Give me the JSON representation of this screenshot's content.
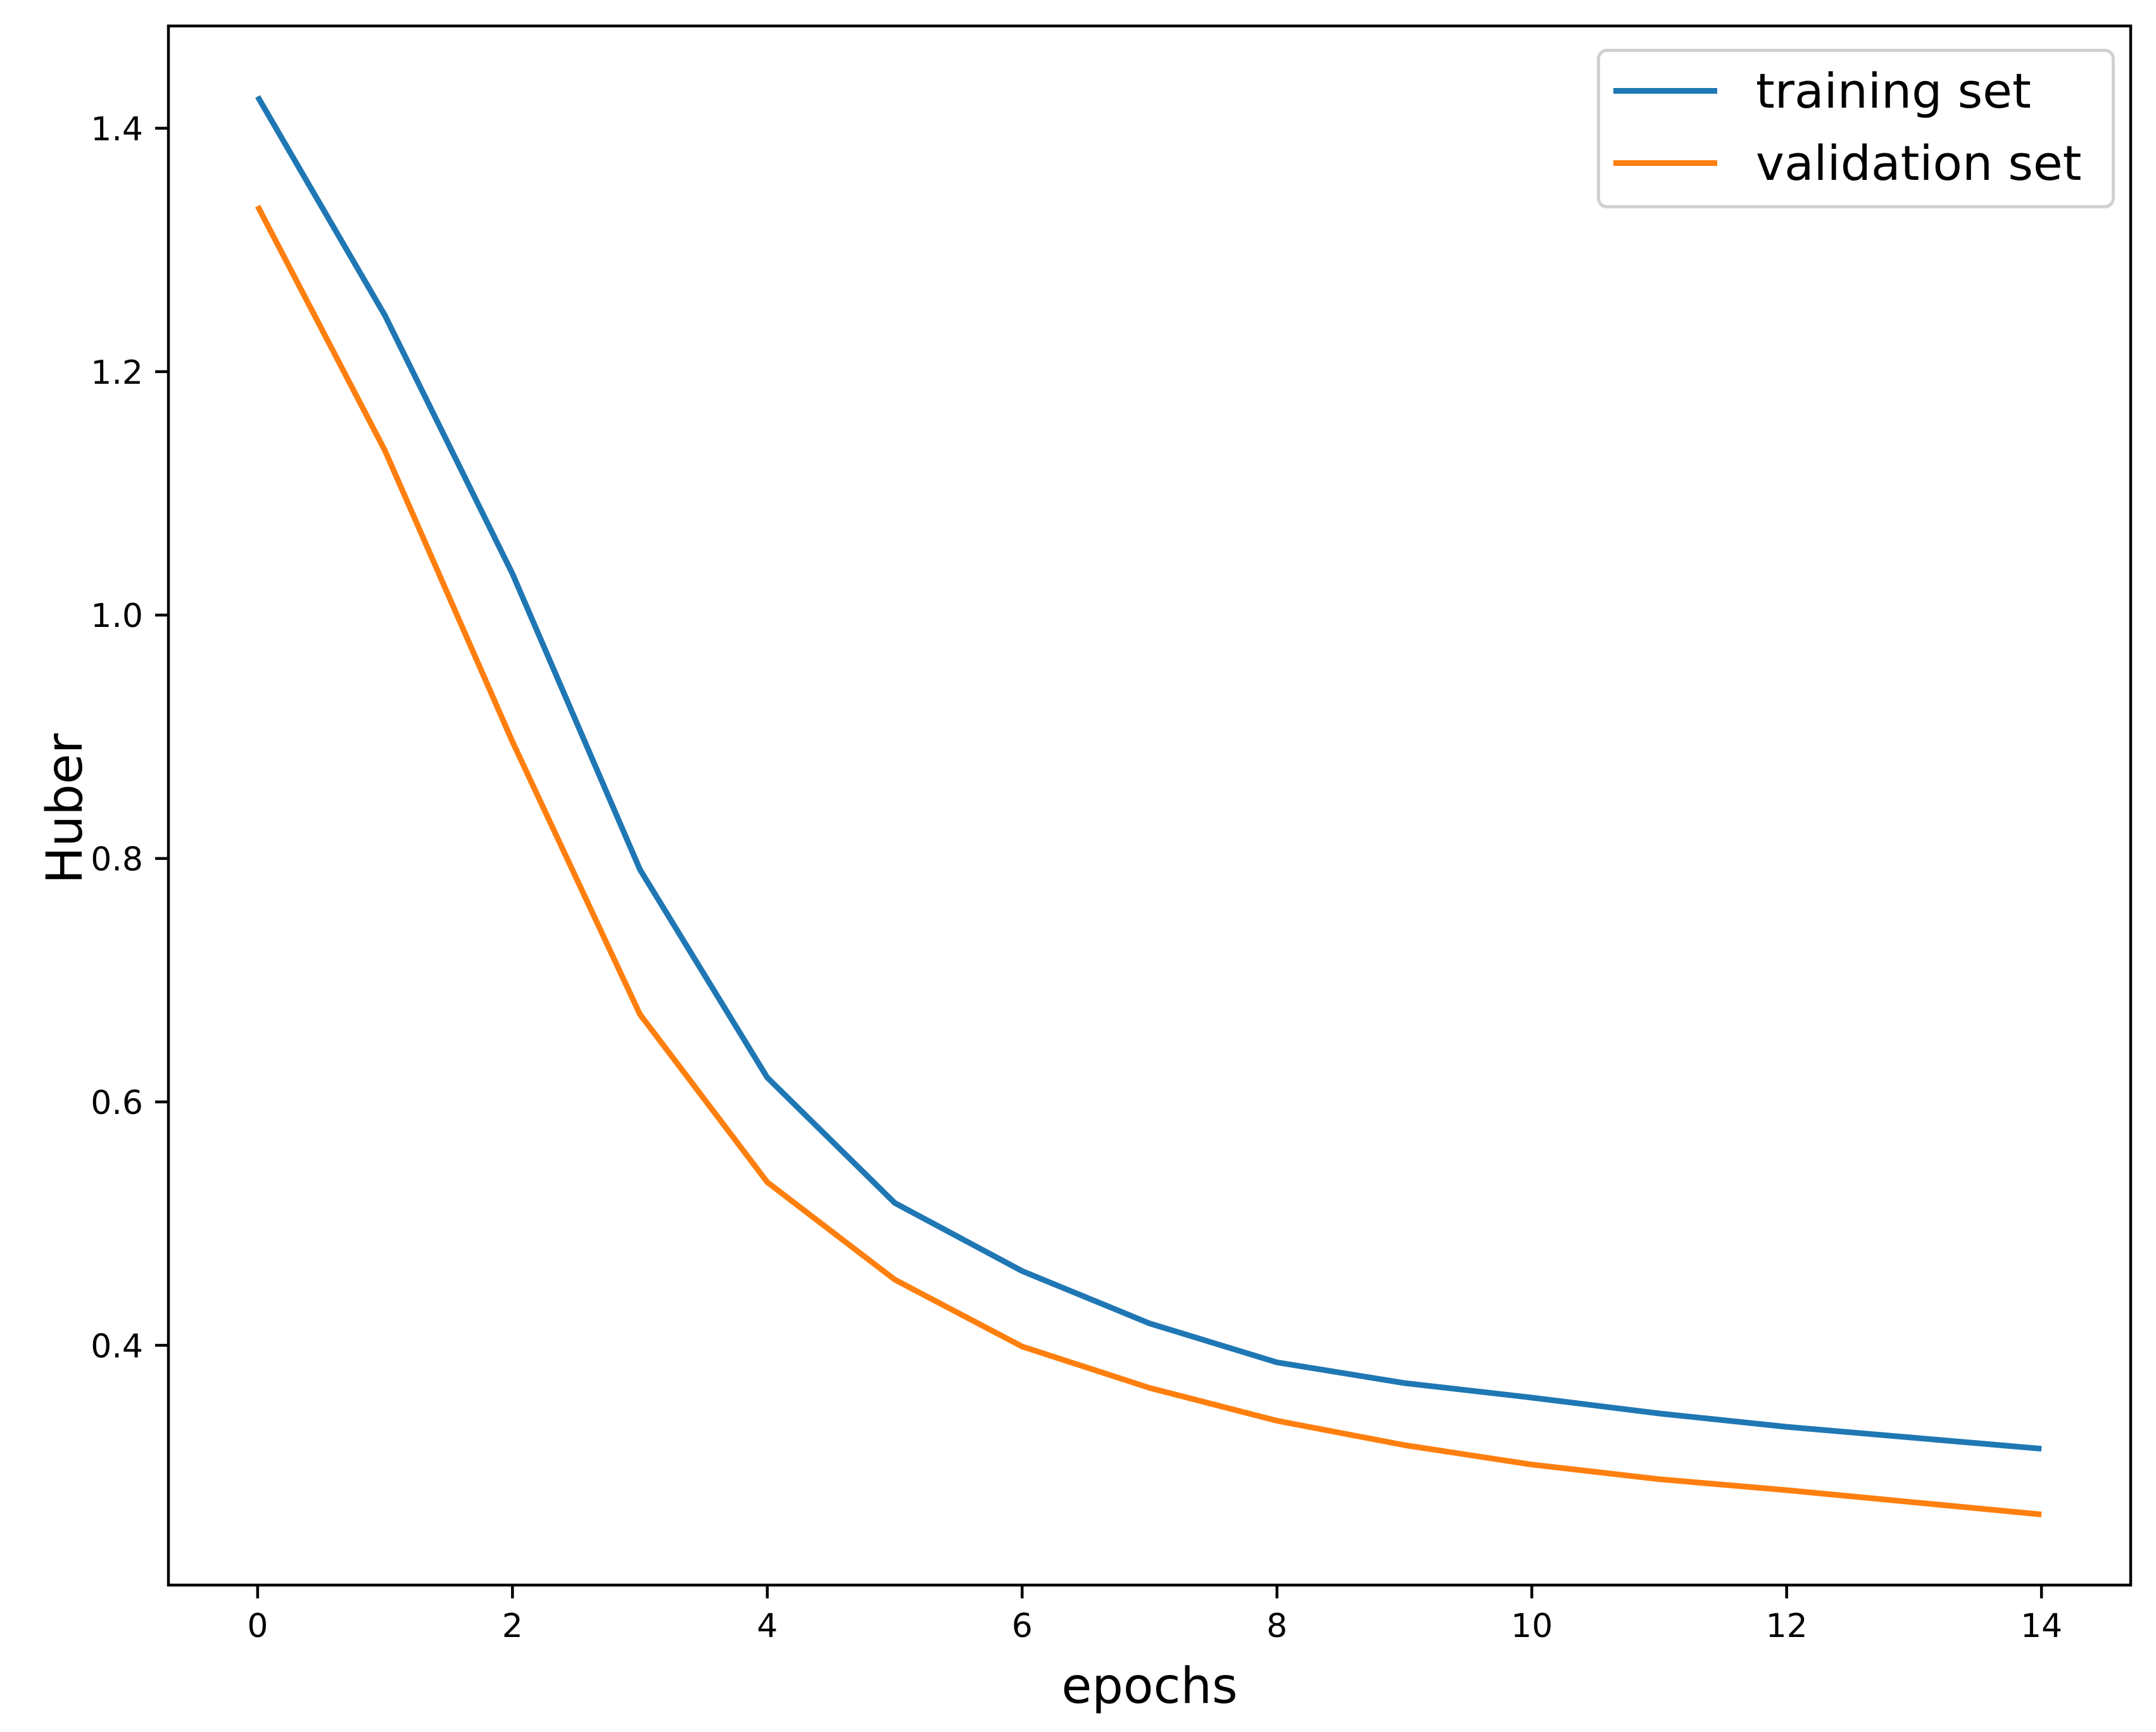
{
  "chart_data": {
    "type": "line",
    "x": [
      0,
      1,
      2,
      3,
      4,
      5,
      6,
      7,
      8,
      9,
      10,
      11,
      12,
      13,
      14
    ],
    "series": [
      {
        "name": "training set",
        "color": "#1f77b4",
        "values": [
          1.426,
          1.246,
          1.034,
          0.791,
          0.62,
          0.517,
          0.461,
          0.418,
          0.386,
          0.369,
          0.357,
          0.344,
          0.333,
          0.324,
          0.315
        ]
      },
      {
        "name": "validation set",
        "color": "#ff7f0e",
        "values": [
          1.336,
          1.135,
          0.896,
          0.672,
          0.534,
          0.454,
          0.399,
          0.365,
          0.338,
          0.318,
          0.302,
          0.29,
          0.281,
          0.271,
          0.261
        ]
      }
    ],
    "title": "",
    "xlabel": "epochs",
    "ylabel": "Huber",
    "xlim": [
      -0.7,
      14.7
    ],
    "ylim": [
      0.203,
      1.484
    ],
    "xticks": [
      0,
      2,
      4,
      6,
      8,
      10,
      12,
      14
    ],
    "yticks": [
      0.4,
      0.6,
      0.8,
      1.0,
      1.2,
      1.4
    ],
    "grid": false,
    "legend_position": "upper right",
    "axis_color": "#000000",
    "legend_border_color": "#d0d0d0"
  }
}
